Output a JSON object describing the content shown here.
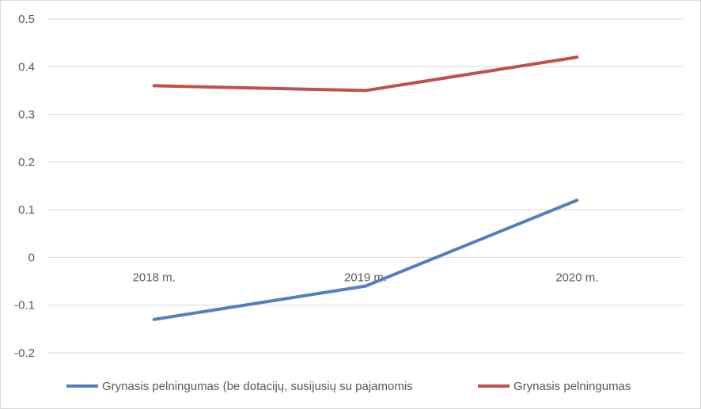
{
  "chart_data": {
    "type": "line",
    "categories": [
      "2018 m.",
      "2019 m.",
      "2020 m."
    ],
    "ylim": [
      -0.2,
      0.5
    ],
    "yticks": [
      "0.5",
      "0.4",
      "0.3",
      "0.2",
      "0.1",
      "0",
      "-0.1",
      "-0.2"
    ],
    "ytick_values": [
      0.5,
      0.4,
      0.3,
      0.2,
      0.1,
      0,
      -0.1,
      -0.2
    ],
    "grid": true,
    "legend_position": "bottom",
    "series": [
      {
        "name": "Grynasis pelningumas (be dotacijų, susijusių su pajamomis",
        "color": "#4f81bd",
        "values": [
          -0.13,
          -0.06,
          0.12
        ]
      },
      {
        "name": "Grynasis pelningumas",
        "color": "#c0504d",
        "values": [
          0.36,
          0.35,
          0.42
        ]
      }
    ]
  }
}
